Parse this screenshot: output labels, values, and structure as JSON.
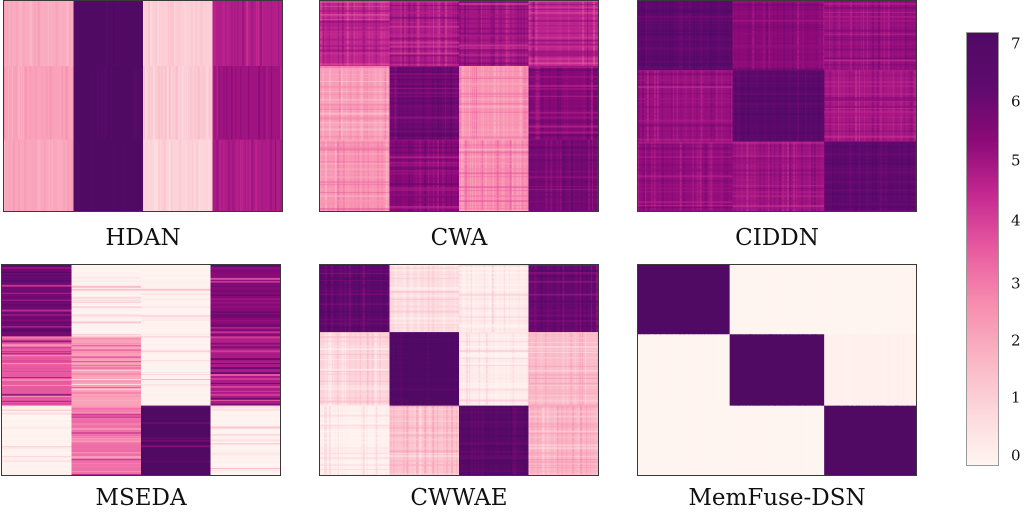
{
  "chart_data": {
    "type": "heatmap",
    "colormap": "RdPu",
    "colorbar": {
      "min": 0,
      "max": 7.2,
      "ticks": [
        "0",
        "1",
        "2",
        "3",
        "4",
        "5",
        "6",
        "7"
      ]
    },
    "panels": [
      {
        "title": "HDAN",
        "blocks": [
          [
            2.0,
            7.2,
            1.1,
            4.8
          ],
          [
            2.2,
            7.2,
            1.2,
            5.1
          ],
          [
            2.1,
            7.2,
            1.0,
            4.9
          ]
        ],
        "col_widths": [
          0.25,
          0.25,
          0.25,
          0.25
        ],
        "row_heights": [
          0.31,
          0.35,
          0.34
        ],
        "stripes": 0.5,
        "stripe_dir": "v"
      },
      {
        "title": "CWA",
        "blocks": [
          [
            4.6,
            4.9,
            5.0,
            4.6
          ],
          [
            2.3,
            6.0,
            2.5,
            5.5
          ],
          [
            2.5,
            5.4,
            2.7,
            5.9
          ]
        ],
        "col_widths": [
          0.25,
          0.25,
          0.25,
          0.25
        ],
        "row_heights": [
          0.31,
          0.35,
          0.34
        ],
        "stripes": 1.2,
        "stripe_dir": "both"
      },
      {
        "title": "CIDDN",
        "blocks": [
          [
            6.4,
            5.4,
            5.2
          ],
          [
            5.2,
            6.6,
            5.0
          ],
          [
            5.3,
            5.1,
            6.3
          ]
        ],
        "col_widths": [
          0.34,
          0.33,
          0.33
        ],
        "row_heights": [
          0.33,
          0.34,
          0.33
        ],
        "stripes": 0.9,
        "stripe_dir": "both"
      },
      {
        "title": "MSEDA",
        "blocks": [
          [
            6.0,
            0.1,
            0.1,
            5.5
          ],
          [
            3.6,
            2.2,
            0.1,
            4.9
          ],
          [
            0.1,
            3.2,
            7.2,
            0.1
          ]
        ],
        "col_widths": [
          0.25,
          0.25,
          0.25,
          0.25
        ],
        "row_heights": [
          0.34,
          0.33,
          0.33
        ],
        "stripes": 2.0,
        "stripe_dir": "h"
      },
      {
        "title": "CWWAE",
        "blocks": [
          [
            6.4,
            0.7,
            0.3,
            6.2
          ],
          [
            0.9,
            7.2,
            0.3,
            1.6
          ],
          [
            0.1,
            1.4,
            6.8,
            1.8
          ]
        ],
        "col_widths": [
          0.25,
          0.25,
          0.25,
          0.25
        ],
        "row_heights": [
          0.32,
          0.35,
          0.33
        ],
        "stripes": 1.3,
        "stripe_dir": "both"
      },
      {
        "title": "MemFuse-DSN",
        "blocks": [
          [
            7.2,
            0.0,
            0.0
          ],
          [
            0.0,
            7.2,
            0.15
          ],
          [
            0.0,
            0.0,
            7.2
          ]
        ],
        "col_widths": [
          0.33,
          0.34,
          0.33
        ],
        "row_heights": [
          0.33,
          0.34,
          0.33
        ],
        "stripes": 0.05,
        "stripe_dir": "v"
      }
    ]
  }
}
